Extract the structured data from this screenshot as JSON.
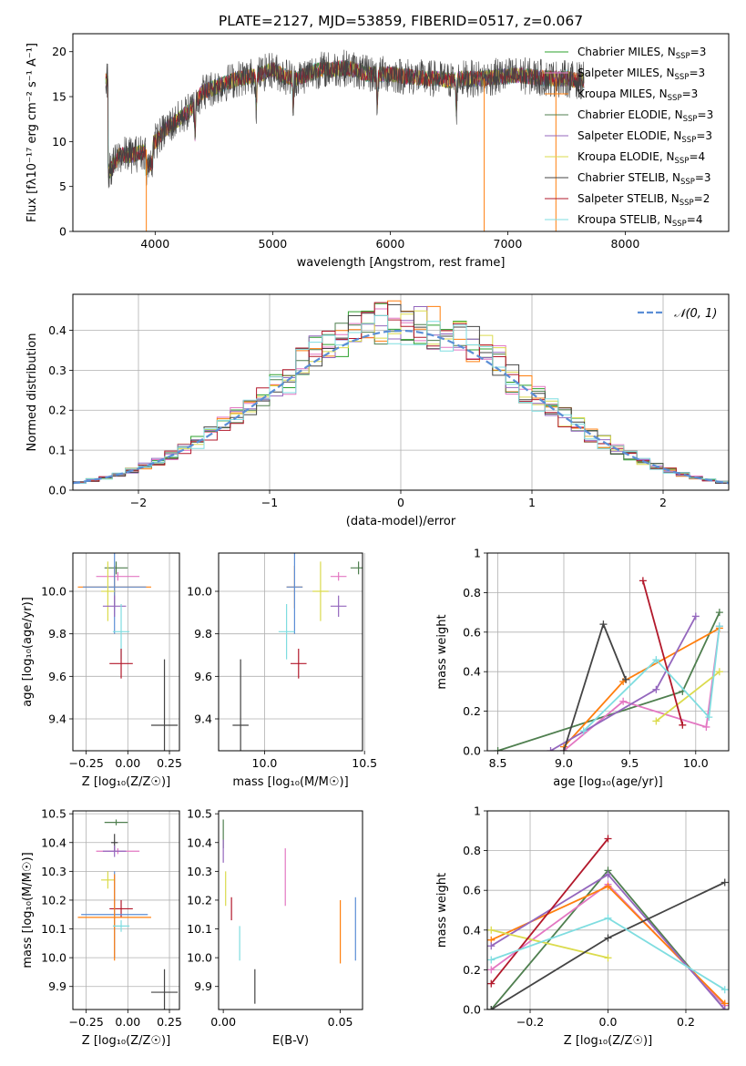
{
  "figure": {
    "title": "PLATE=2127, MJD=53859, FIBERID=0517, z=0.067"
  },
  "chart_data": [
    {
      "id": "spectrum",
      "type": "line",
      "title": "PLATE=2127, MJD=53859, FIBERID=0517, z=0.067",
      "xlabel": "wavelength [Angstrom, rest frame]",
      "ylabel": "Flux [fλ10⁻¹⁷ erg cm⁻² s⁻¹ A⁻¹]",
      "xlim": [
        3300,
        8880
      ],
      "ylim": [
        0,
        22
      ],
      "xticks": [
        4000,
        5000,
        6000,
        7000,
        8000
      ],
      "yticks": [
        0,
        5,
        10,
        15,
        20
      ],
      "grid": false,
      "legend_position": "right",
      "series": [
        {
          "name": "Chabrier MILES, N",
          "sub": "SSP",
          "suffix": "=3",
          "color": "#2ca02c"
        },
        {
          "name": "Salpeter MILES, N",
          "sub": "SSP",
          "suffix": "=3",
          "color": "#e377c2"
        },
        {
          "name": "Kroupa MILES, N",
          "sub": "SSP",
          "suffix": "=3",
          "color": "#ff7f0e"
        },
        {
          "name": "Chabrier ELODIE, N",
          "sub": "SSP",
          "suffix": "=3",
          "color": "#4f7f4f"
        },
        {
          "name": "Salpeter ELODIE, N",
          "sub": "SSP",
          "suffix": "=3",
          "color": "#9467bd"
        },
        {
          "name": "Kroupa ELODIE, N",
          "sub": "SSP",
          "suffix": "=4",
          "color": "#dbdb4d"
        },
        {
          "name": "Chabrier STELIB, N",
          "sub": "SSP",
          "suffix": "=3",
          "color": "#444444"
        },
        {
          "name": "Salpeter STELIB, N",
          "sub": "SSP",
          "suffix": "=2",
          "color": "#b2182b"
        },
        {
          "name": "Kroupa STELIB, N",
          "sub": "SSP",
          "suffix": "=4",
          "color": "#7fdde0"
        }
      ],
      "continuum": {
        "x": [
          3600,
          3700,
          3800,
          3900,
          4000,
          4100,
          4200,
          4300,
          4400,
          4500,
          4600,
          4700,
          4800,
          4900,
          5000,
          5100,
          5200,
          5300,
          5400,
          5500,
          5600,
          5700,
          5800,
          5900,
          6000,
          6100,
          6200,
          6300,
          6400,
          6500,
          6600,
          6700,
          6800,
          6900,
          7000,
          7100,
          7200,
          7300,
          7400,
          7500,
          7600
        ],
        "y": [
          6.5,
          8.5,
          8.5,
          8.8,
          10.0,
          11.5,
          12.5,
          13.5,
          15.5,
          16.0,
          16.5,
          17.0,
          17.2,
          17.5,
          18.0,
          17.3,
          17.0,
          17.5,
          18.0,
          18.0,
          18.2,
          18.0,
          17.5,
          17.5,
          17.5,
          17.3,
          17.2,
          17.0,
          17.0,
          16.8,
          17.0,
          17.0,
          17.0,
          17.2,
          17.3,
          17.4,
          17.2,
          17.1,
          17.0,
          17.0,
          16.8
        ]
      },
      "absorption_lines": [
        4340,
        4861,
        5175,
        5890,
        6563
      ]
    },
    {
      "id": "residuals",
      "type": "area",
      "xlabel": "(data-model)/error",
      "ylabel": "Normed distribution",
      "xlim": [
        -2.5,
        2.5
      ],
      "ylim": [
        0,
        0.49
      ],
      "xticks": [
        -2,
        -1,
        0,
        1,
        2
      ],
      "yticks": [
        0.0,
        0.1,
        0.2,
        0.3,
        0.4
      ],
      "grid": true,
      "legend_position": "top-right",
      "reference": {
        "name": "𝒩(0, 1)",
        "mean": 0,
        "sigma": 1,
        "color": "#5b8ed6"
      },
      "bin_width": 0.1
    },
    {
      "id": "z-age",
      "type": "scatter",
      "xlabel": "Z [log₁₀(Z/Z☉)]",
      "ylabel": "age [log₁₀(age/yr)]",
      "xlim": [
        -0.33,
        0.31
      ],
      "ylim": [
        9.25,
        10.18
      ],
      "xticks": [
        -0.25,
        0.0,
        0.25
      ],
      "xticklabels": [
        "−0.25",
        "0.00",
        "0.25"
      ],
      "yticks": [
        9.4,
        9.6,
        9.8,
        10.0
      ],
      "grid": true,
      "points": [
        {
          "x": -0.07,
          "y": 10.11,
          "xerr": 0.07,
          "yerr": 0.03,
          "color": "#4f7f4f"
        },
        {
          "x": -0.06,
          "y": 10.07,
          "xerr": 0.13,
          "yerr": 0.02,
          "color": "#e377c2"
        },
        {
          "x": -0.08,
          "y": 10.02,
          "xerr": 0.22,
          "yerr": 0.1,
          "color": "#ff7f0e"
        },
        {
          "x": -0.08,
          "y": 10.02,
          "xerr": 0.19,
          "yerr": 0.22,
          "color": "#5b8ed6"
        },
        {
          "x": -0.12,
          "y": 10.0,
          "xerr": 0.04,
          "yerr": 0.14,
          "color": "#dbdb4d"
        },
        {
          "x": -0.08,
          "y": 9.93,
          "xerr": 0.07,
          "yerr": 0.05,
          "color": "#9467bd"
        },
        {
          "x": -0.04,
          "y": 9.81,
          "xerr": 0.05,
          "yerr": 0.13,
          "color": "#7fdde0"
        },
        {
          "x": -0.04,
          "y": 9.66,
          "xerr": 0.07,
          "yerr": 0.07,
          "color": "#b2182b"
        },
        {
          "x": 0.22,
          "y": 9.37,
          "xerr": 0.08,
          "yerr": 0.31,
          "color": "#444444"
        }
      ]
    },
    {
      "id": "mass-age",
      "type": "scatter",
      "xlabel": "mass [log₁₀(M/M☉)]",
      "ylabel": "",
      "xlim": [
        9.77,
        10.49
      ],
      "ylim": [
        9.25,
        10.18
      ],
      "xticks": [
        10.0,
        10.5
      ],
      "xticklabels": [
        "10.0",
        "10.5"
      ],
      "yticks": [
        9.4,
        9.6,
        9.8,
        10.0
      ],
      "grid": true,
      "points": [
        {
          "x": 10.47,
          "y": 10.11,
          "xerr": 0.04,
          "yerr": 0.03,
          "color": "#4f7f4f"
        },
        {
          "x": 10.37,
          "y": 10.07,
          "xerr": 0.04,
          "yerr": 0.02,
          "color": "#e377c2"
        },
        {
          "x": 10.15,
          "y": 10.02,
          "xerr": 0.04,
          "yerr": 0.1,
          "color": "#ff7f0e"
        },
        {
          "x": 10.15,
          "y": 10.02,
          "xerr": 0.04,
          "yerr": 0.22,
          "color": "#5b8ed6"
        },
        {
          "x": 10.28,
          "y": 10.0,
          "xerr": 0.04,
          "yerr": 0.14,
          "color": "#dbdb4d"
        },
        {
          "x": 10.37,
          "y": 9.93,
          "xerr": 0.04,
          "yerr": 0.05,
          "color": "#9467bd"
        },
        {
          "x": 10.11,
          "y": 9.81,
          "xerr": 0.04,
          "yerr": 0.13,
          "color": "#7fdde0"
        },
        {
          "x": 10.17,
          "y": 9.66,
          "xerr": 0.04,
          "yerr": 0.07,
          "color": "#b2182b"
        },
        {
          "x": 9.88,
          "y": 9.37,
          "xerr": 0.04,
          "yerr": 0.31,
          "color": "#444444"
        }
      ]
    },
    {
      "id": "age-weight",
      "type": "line",
      "xlabel": "age [log₁₀(age/yr)]",
      "ylabel": "mass weight",
      "xlim": [
        8.42,
        10.25
      ],
      "ylim": [
        0,
        1
      ],
      "xticks": [
        8.5,
        9.0,
        9.5,
        10.0
      ],
      "xticklabels": [
        "8.5",
        "9.0",
        "9.5",
        "10.0"
      ],
      "yticks": [
        0.0,
        0.2,
        0.4,
        0.6,
        0.8,
        1.0
      ],
      "grid": true,
      "series": [
        {
          "color": "#4f7f4f",
          "x": [
            8.5,
            9.9,
            10.18
          ],
          "y": [
            0.0,
            0.3,
            0.7
          ]
        },
        {
          "color": "#e377c2",
          "x": [
            9.0,
            9.45,
            10.08,
            10.18
          ],
          "y": [
            0.0,
            0.25,
            0.12,
            0.63
          ]
        },
        {
          "color": "#ff7f0e",
          "x": [
            9.0,
            9.45,
            10.18
          ],
          "y": [
            0.02,
            0.35,
            0.62
          ]
        },
        {
          "color": "#9467bd",
          "x": [
            8.9,
            9.7,
            10.0
          ],
          "y": [
            0.0,
            0.31,
            0.68
          ]
        },
        {
          "color": "#dbdb4d",
          "x": [
            9.7,
            10.18
          ],
          "y": [
            0.15,
            0.4
          ]
        },
        {
          "color": "#444444",
          "x": [
            9.0,
            9.3,
            9.47
          ],
          "y": [
            0.0,
            0.64,
            0.36
          ]
        },
        {
          "color": "#b2182b",
          "x": [
            9.6,
            9.9
          ],
          "y": [
            0.86,
            0.13
          ]
        },
        {
          "color": "#7fdde0",
          "x": [
            9.15,
            9.7,
            10.1,
            10.18
          ],
          "y": [
            0.1,
            0.46,
            0.17,
            0.63
          ]
        }
      ]
    },
    {
      "id": "z-mass",
      "type": "scatter",
      "xlabel": "Z [log₁₀(Z/Z☉)]",
      "ylabel": "mass [log₁₀(M/M☉)]",
      "xlim": [
        -0.33,
        0.31
      ],
      "ylim": [
        9.82,
        10.51
      ],
      "xticks": [
        -0.25,
        0.0,
        0.25
      ],
      "xticklabels": [
        "−0.25",
        "0.00",
        "0.25"
      ],
      "yticks": [
        9.9,
        10.0,
        10.1,
        10.2,
        10.3,
        10.4,
        10.5
      ],
      "grid": true,
      "points": [
        {
          "x": -0.07,
          "y": 10.47,
          "xerr": 0.07,
          "yerr": 0.01,
          "color": "#4f7f4f"
        },
        {
          "x": -0.08,
          "y": 10.4,
          "xerr": 0.02,
          "yerr": 0.03,
          "color": "#444444"
        },
        {
          "x": -0.06,
          "y": 10.37,
          "xerr": 0.13,
          "yerr": 0.01,
          "color": "#e377c2"
        },
        {
          "x": -0.08,
          "y": 10.37,
          "xerr": 0.07,
          "yerr": 0.02,
          "color": "#9467bd"
        },
        {
          "x": -0.12,
          "y": 10.27,
          "xerr": 0.04,
          "yerr": 0.03,
          "color": "#dbdb4d"
        },
        {
          "x": -0.04,
          "y": 10.17,
          "xerr": 0.07,
          "yerr": 0.03,
          "color": "#b2182b"
        },
        {
          "x": -0.08,
          "y": 10.15,
          "xerr": 0.2,
          "yerr": 0.15,
          "color": "#5b8ed6"
        },
        {
          "x": -0.08,
          "y": 10.14,
          "xerr": 0.22,
          "yerr": 0.15,
          "color": "#ff7f0e"
        },
        {
          "x": -0.04,
          "y": 10.11,
          "xerr": 0.05,
          "yerr": 0.02,
          "color": "#7fdde0"
        },
        {
          "x": 0.22,
          "y": 9.88,
          "xerr": 0.08,
          "yerr": 0.08,
          "color": "#444444"
        }
      ]
    },
    {
      "id": "ebv-mass",
      "type": "scatter",
      "xlabel": "E(B-V)",
      "ylabel": "",
      "xlim": [
        -0.002,
        0.0595
      ],
      "ylim": [
        9.82,
        10.51
      ],
      "xticks": [
        0.0,
        0.05
      ],
      "xticklabels": [
        "0.00",
        "0.05"
      ],
      "yticks": [
        9.9,
        10.0,
        10.1,
        10.2,
        10.3,
        10.4,
        10.5
      ],
      "grid": false,
      "points": [
        {
          "x": 0.0,
          "y": 10.43,
          "xerr": 0,
          "yerr": 0.05,
          "color": "#4f7f4f"
        },
        {
          "x": 0.0,
          "y": 10.37,
          "xerr": 0,
          "yerr": 0.04,
          "color": "#9467bd"
        },
        {
          "x": 0.001,
          "y": 10.24,
          "xerr": 0,
          "yerr": 0.06,
          "color": "#dbdb4d"
        },
        {
          "x": 0.0035,
          "y": 10.17,
          "xerr": 0,
          "yerr": 0.04,
          "color": "#b2182b"
        },
        {
          "x": 0.007,
          "y": 10.05,
          "xerr": 0,
          "yerr": 0.06,
          "color": "#7fdde0"
        },
        {
          "x": 0.0135,
          "y": 9.9,
          "xerr": 0,
          "yerr": 0.06,
          "color": "#444444"
        },
        {
          "x": 0.0265,
          "y": 10.28,
          "xerr": 0,
          "yerr": 0.1,
          "color": "#e377c2"
        },
        {
          "x": 0.05,
          "y": 10.09,
          "xerr": 0,
          "yerr": 0.11,
          "color": "#ff7f0e"
        },
        {
          "x": 0.0565,
          "y": 10.1,
          "xerr": 0,
          "yerr": 0.11,
          "color": "#5b8ed6"
        }
      ]
    },
    {
      "id": "z-weight",
      "type": "line",
      "xlabel": "Z [log₁₀(Z/Z☉)]",
      "ylabel": "mass weight",
      "xlim": [
        -0.31,
        0.31
      ],
      "ylim": [
        0,
        1
      ],
      "xticks": [
        -0.2,
        0.0,
        0.2
      ],
      "xticklabels": [
        "−0.2",
        "0.0",
        "0.2"
      ],
      "yticks": [
        0.0,
        0.2,
        0.4,
        0.6,
        0.8,
        1.0
      ],
      "grid": true,
      "series": [
        {
          "color": "#4f7f4f",
          "x": [
            -0.3,
            0.0,
            0.3
          ],
          "y": [
            0.0,
            0.7,
            0.0
          ]
        },
        {
          "color": "#e377c2",
          "x": [
            -0.3,
            0.0,
            0.3
          ],
          "y": [
            0.2,
            0.63,
            0.02
          ]
        },
        {
          "color": "#ff7f0e",
          "x": [
            -0.3,
            0.0,
            0.3
          ],
          "y": [
            0.35,
            0.62,
            0.03
          ]
        },
        {
          "color": "#9467bd",
          "x": [
            -0.3,
            0.0,
            0.3
          ],
          "y": [
            0.32,
            0.68,
            0.0
          ]
        },
        {
          "color": "#dbdb4d",
          "x": [
            -0.3,
            0.0
          ],
          "y": [
            0.4,
            0.26
          ]
        },
        {
          "color": "#444444",
          "x": [
            -0.3,
            0.0,
            0.3
          ],
          "y": [
            0.0,
            0.36,
            0.64
          ]
        },
        {
          "color": "#b2182b",
          "x": [
            -0.3,
            0.0
          ],
          "y": [
            0.13,
            0.86
          ]
        },
        {
          "color": "#7fdde0",
          "x": [
            -0.3,
            0.0,
            0.3
          ],
          "y": [
            0.25,
            0.46,
            0.1
          ]
        }
      ]
    }
  ]
}
